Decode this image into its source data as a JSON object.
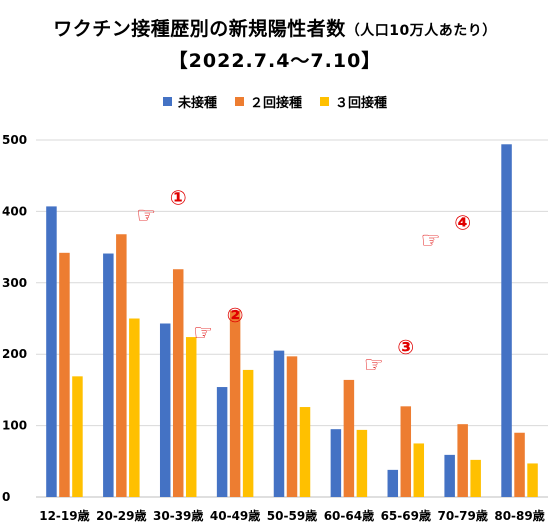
{
  "chart_data": {
    "type": "bar",
    "title": "ワクチン接種歴別の新規陽性者数",
    "title_note": "（人口10万人あたり）",
    "subtitle": "【2022.7.4～7.10】",
    "categories": [
      "12-19歳",
      "20-29歳",
      "30-39歳",
      "40-49歳",
      "50-59歳",
      "60-64歳",
      "65-69歳",
      "70-79歳",
      "80-89歳"
    ],
    "series": [
      {
        "name": "未接種",
        "color": "#4472C4",
        "values": [
          407,
          341,
          243,
          154,
          205,
          95,
          38,
          59,
          494
        ]
      },
      {
        "name": "２回接種",
        "color": "#ED7D31",
        "values": [
          342,
          368,
          319,
          261,
          197,
          164,
          127,
          102,
          90
        ]
      },
      {
        "name": "３回接種",
        "color": "#FFC000",
        "values": [
          169,
          250,
          224,
          178,
          126,
          94,
          75,
          52,
          47
        ]
      }
    ],
    "yticks": [
      0,
      100,
      200,
      300,
      400,
      500
    ],
    "ylim": [
      0,
      500
    ],
    "grid": true,
    "legend_position": "top-center",
    "annotations": [
      {
        "label": "①",
        "category": "30-39歳",
        "y": 410
      },
      {
        "label": "②",
        "category": "40-49歳",
        "y": 245
      },
      {
        "label": "③",
        "category": "65-69歳",
        "y": 200
      },
      {
        "label": "④",
        "category": "70-79歳",
        "y": 375
      }
    ]
  }
}
